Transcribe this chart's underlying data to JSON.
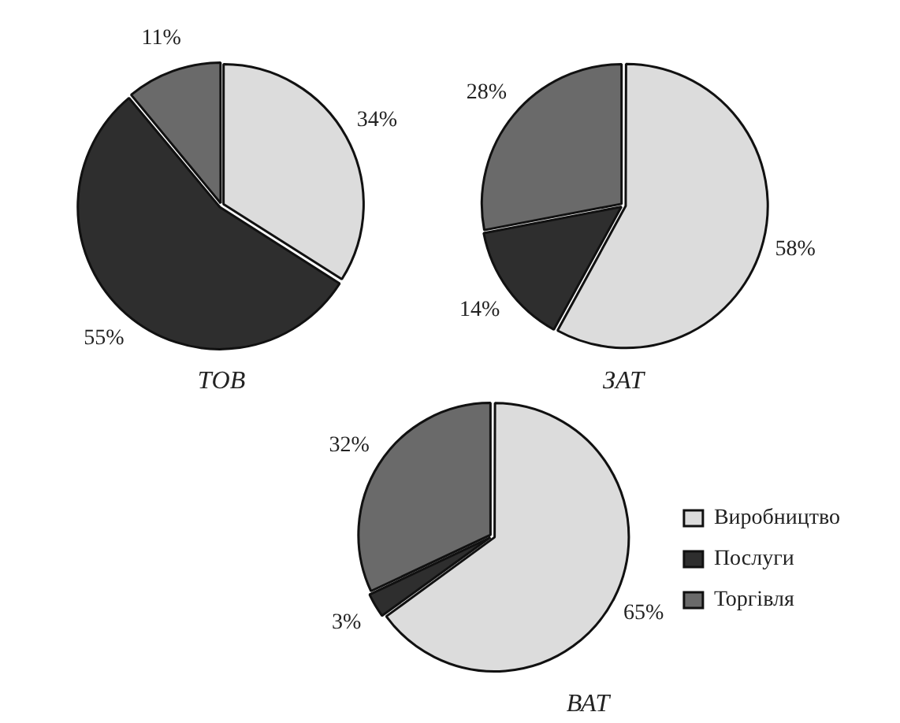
{
  "chart_data": [
    {
      "type": "pie",
      "title": "ТОВ",
      "categories": [
        null,
        null,
        null
      ],
      "values": [
        34,
        55,
        11
      ],
      "value_labels": [
        "34%",
        "55%",
        "11%"
      ],
      "colors": [
        "#dcdcdc",
        "#2e2e2e",
        "#6a6a6a"
      ],
      "legend": false
    },
    {
      "type": "pie",
      "title": "ЗАТ",
      "categories": [
        null,
        null,
        null
      ],
      "values": [
        58,
        14,
        28
      ],
      "value_labels": [
        "58%",
        "14%",
        "28%"
      ],
      "colors": [
        "#dcdcdc",
        "#2e2e2e",
        "#6a6a6a"
      ],
      "legend": false
    },
    {
      "type": "pie",
      "title": "ВАТ",
      "categories": [
        "Виробництво",
        "Послуги",
        "Торгівля"
      ],
      "values": [
        65,
        3,
        32
      ],
      "value_labels": [
        "65%",
        "3%",
        "32%"
      ],
      "colors": [
        "#dcdcdc",
        "#2e2e2e",
        "#6a6a6a"
      ],
      "legend": "right"
    }
  ]
}
